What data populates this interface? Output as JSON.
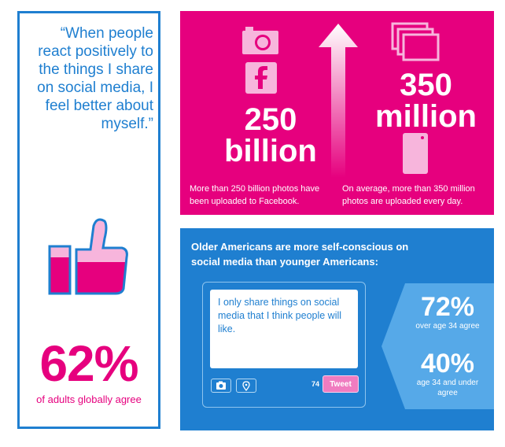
{
  "left": {
    "quote": "“When people react positively to the things I share on social media, I feel better about myself.”",
    "stat_value": "62%",
    "stat_caption": "of adults globally agree"
  },
  "pink": {
    "left_value": "250 billion",
    "left_caption": "More than 250 billion photos have been uploaded to Facebook.",
    "right_value": "350 million",
    "right_caption": "On average, more than 350 million photos are uploaded every day.",
    "icons": [
      "camera-icon",
      "facebook-icon",
      "up-arrow",
      "photos-icon",
      "phone-icon"
    ],
    "colors": {
      "pink": "#e6007e",
      "light_pink": "#f7b5dc"
    }
  },
  "blue": {
    "heading": "Older Americans are more self-conscious on social media than younger Americans:",
    "tweet_text": "I only share things on social media that I think people will like.",
    "char_count": "74",
    "tweet_button": "Tweet",
    "stat1_value": "72%",
    "stat1_caption": "over age 34 agree",
    "stat2_value": "40%",
    "stat2_caption": "age 34 and under agree",
    "colors": {
      "blue": "#1f7fd0",
      "light_blue": "#56a9e8"
    }
  }
}
